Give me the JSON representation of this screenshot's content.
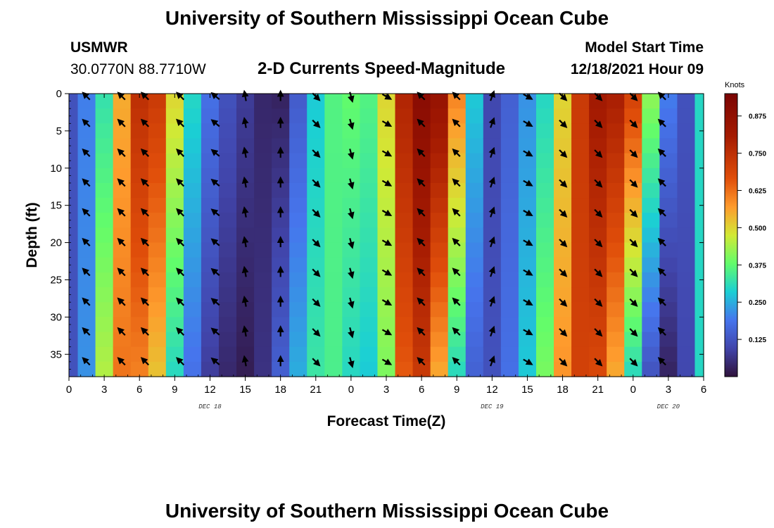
{
  "header": {
    "title": "University of Southern Mississippi Ocean Cube",
    "station": "USMWR",
    "coordinates": "30.0770N  88.7710W",
    "model_start_label": "Model Start Time",
    "model_start_value": "12/18/2021 Hour 09"
  },
  "footer": {
    "title": "University of Southern Mississippi Ocean Cube"
  },
  "colors": {
    "low": "#30123b",
    "mid": "#a2fc3c",
    "high": "#7a0403"
  },
  "chart_data": {
    "type": "heatmap",
    "title": "2-D Currents Speed-Magnitude",
    "xlabel": "Forecast Time(Z)",
    "ylabel": "Depth (ft)",
    "colorbar_label": "Knots",
    "colorbar_ticks": [
      "0.875",
      "0.750",
      "0.625",
      "0.500",
      "0.375",
      "0.250",
      "0.125"
    ],
    "colorbar_range": [
      0,
      0.95
    ],
    "x_tick_labels": [
      "0",
      "3",
      "6",
      "9",
      "12",
      "15",
      "18",
      "21",
      "0",
      "3",
      "6",
      "9",
      "12",
      "15",
      "18",
      "21",
      "0",
      "3",
      "6"
    ],
    "x_range_hours": [
      0,
      54
    ],
    "date_labels": [
      {
        "text": "DEC 18",
        "hour": 12
      },
      {
        "text": "DEC 19",
        "hour": 36
      },
      {
        "text": "DEC 20",
        "hour": 51
      }
    ],
    "y_tick_labels": [
      "0",
      "5",
      "10",
      "15",
      "20",
      "25",
      "30",
      "35"
    ],
    "y_range_ft": [
      0,
      38
    ],
    "hours": [
      0,
      1.5,
      3,
      4.5,
      6,
      7.5,
      9,
      10.5,
      12,
      13.5,
      15,
      16.5,
      18,
      19.5,
      21,
      22.5,
      24,
      25.5,
      27,
      28.5,
      30,
      31.5,
      33,
      34.5,
      36,
      37.5,
      39,
      40.5,
      42,
      43.5,
      45,
      46.5,
      48,
      49.5,
      51,
      52.5,
      54
    ],
    "surface_speed_knots": [
      0.12,
      0.2,
      0.32,
      0.55,
      0.75,
      0.72,
      0.5,
      0.3,
      0.18,
      0.12,
      0.08,
      0.04,
      0.03,
      0.14,
      0.28,
      0.36,
      0.38,
      0.36,
      0.5,
      0.78,
      0.9,
      0.86,
      0.6,
      0.28,
      0.1,
      0.15,
      0.22,
      0.3,
      0.5,
      0.72,
      0.82,
      0.8,
      0.7,
      0.42,
      0.2,
      0.12,
      0.3
    ],
    "bottom_speed_knots": [
      0.12,
      0.22,
      0.45,
      0.62,
      0.6,
      0.52,
      0.3,
      0.18,
      0.08,
      0.04,
      0.02,
      0.06,
      0.15,
      0.25,
      0.33,
      0.35,
      0.3,
      0.28,
      0.4,
      0.65,
      0.72,
      0.55,
      0.3,
      0.15,
      0.12,
      0.18,
      0.28,
      0.4,
      0.58,
      0.7,
      0.68,
      0.55,
      0.3,
      0.12,
      0.03,
      0.1,
      0.3
    ],
    "arrow_hours": [
      1.5,
      4.5,
      6.5,
      9.5,
      12.5,
      15.0,
      18.0,
      21.0,
      24.0,
      27.0,
      30.0,
      33.0,
      36.0,
      39.0,
      42.0,
      45.0,
      48.0,
      50.5
    ],
    "arrow_depths_ft": [
      0,
      4,
      8,
      12,
      16,
      20,
      24,
      28,
      32,
      36
    ],
    "arrow_direction_deg": [
      315,
      315,
      315,
      315,
      310,
      350,
      0,
      135,
      165,
      120,
      315,
      315,
      20,
      120,
      135,
      135,
      135,
      315
    ]
  }
}
